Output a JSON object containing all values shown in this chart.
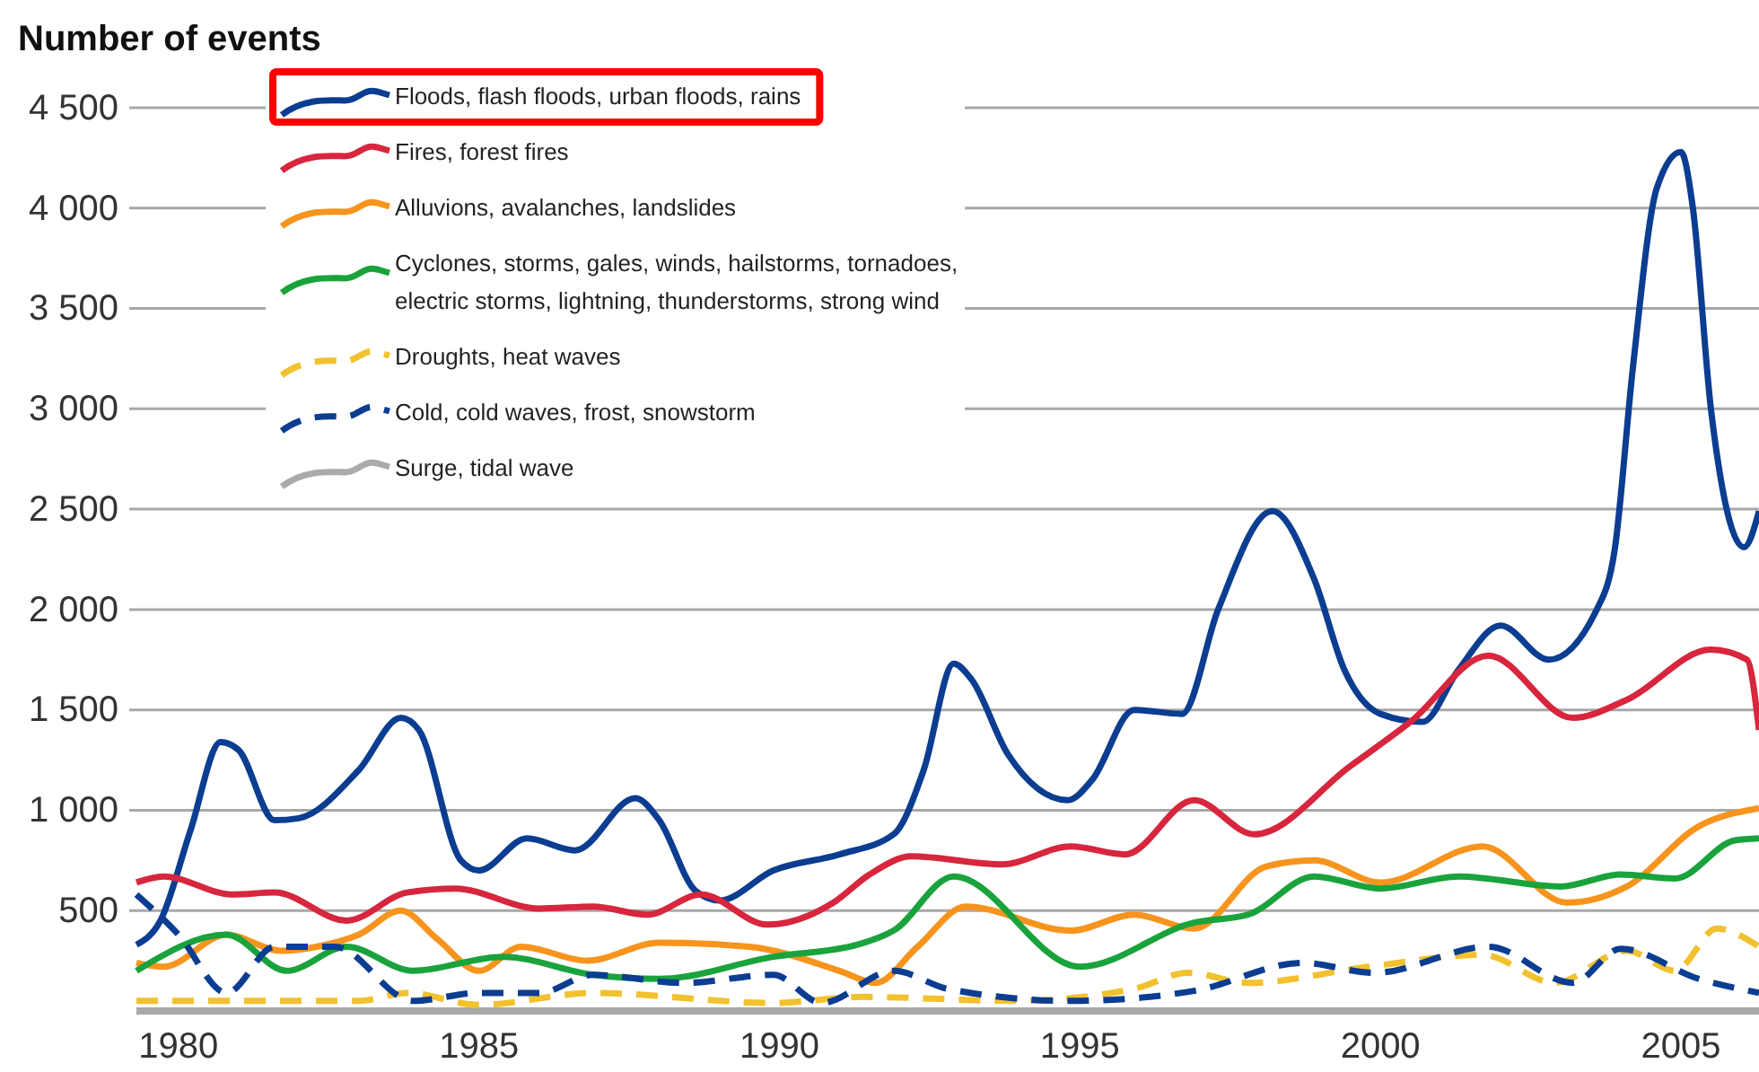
{
  "chart_data": {
    "type": "line",
    "ylabel": "Number of events",
    "xlim": [
      1979.3,
      2006.3
    ],
    "xticks": [
      1980,
      1985,
      1990,
      1995,
      2000,
      2005
    ],
    "ylim": [
      0,
      4500
    ],
    "yticks": [
      {
        "value": 500,
        "label": "500"
      },
      {
        "value": 1000,
        "label": "1 000"
      },
      {
        "value": 1500,
        "label": "1 500"
      },
      {
        "value": 2000,
        "label": "2 000"
      },
      {
        "value": 2500,
        "label": "2 500"
      },
      {
        "value": 3000,
        "label": "3 000"
      },
      {
        "value": 3500,
        "label": "3 500"
      },
      {
        "value": 4000,
        "label": "4 000"
      },
      {
        "value": 4500,
        "label": "4 500"
      }
    ],
    "grid": "y",
    "legend": "top left",
    "marker": "none",
    "series": [
      {
        "name": "Floods, flash floods, urban floods, rains",
        "color": "#0b3d91",
        "line_style": "solid",
        "x": [
          1979.3,
          1979.7,
          1980.2,
          1980.7,
          1981.0,
          1981.6,
          1982.0,
          1983.0,
          1983.7,
          1984.0,
          1984.7,
          1985.0,
          1985.8,
          1986.6,
          1987.6,
          1988.0,
          1988.6,
          1989.0,
          1989.9,
          1991.0,
          1991.9,
          1992.4,
          1992.9,
          1993.2,
          1993.8,
          1994.8,
          1995.2,
          1995.9,
          1996.7,
          1997.3,
          1998.2,
          1998.9,
          1999.4,
          2000.0,
          2000.7,
          2001.3,
          2002.0,
          2002.8,
          2003.6,
          2003.9,
          2004.2,
          2004.6,
          2005.0,
          2005.2,
          2005.5,
          2006.05,
          2006.3
        ],
        "values": [
          330,
          450,
          900,
          1340,
          1300,
          950,
          960,
          1200,
          1460,
          1400,
          750,
          700,
          860,
          800,
          1060,
          950,
          600,
          550,
          700,
          780,
          880,
          1200,
          1730,
          1650,
          1280,
          1050,
          1150,
          1500,
          1480,
          2000,
          2490,
          2150,
          1700,
          1480,
          1440,
          1700,
          1920,
          1750,
          2000,
          2300,
          3200,
          4100,
          4280,
          4000,
          3000,
          2310,
          2490
        ]
      },
      {
        "name": "Fires, forest fires",
        "color": "#d7263d",
        "line_style": "solid",
        "x": [
          1979.3,
          1979.75,
          1980.9,
          1981.6,
          1982.8,
          1983.8,
          1984.6,
          1986.0,
          1986.9,
          1987.8,
          1988.7,
          1989.8,
          1990.9,
          1991.5,
          1992.2,
          1993.7,
          1994.85,
          1995.75,
          1996.9,
          1997.9,
          1999.5,
          2000.5,
          2001.8,
          2003.2,
          2004.1,
          2005.5,
          2006.1,
          2006.3
        ],
        "values": [
          640,
          670,
          580,
          590,
          450,
          590,
          610,
          510,
          520,
          480,
          580,
          430,
          540,
          680,
          770,
          730,
          820,
          780,
          1050,
          880,
          1220,
          1440,
          1770,
          1460,
          1550,
          1800,
          1750,
          1400
        ]
      },
      {
        "name": "Alluvions, avalanches, landslides",
        "color": "#f7941d",
        "line_style": "solid",
        "x": [
          1979.3,
          1979.75,
          1980.8,
          1981.7,
          1982.3,
          1983.0,
          1983.7,
          1984.3,
          1985.0,
          1985.7,
          1986.8,
          1988.0,
          1989.5,
          1991.0,
          1991.6,
          1992.3,
          1993.1,
          1994.85,
          1995.9,
          1996.9,
          1998.1,
          1998.9,
          2000.0,
          2001.7,
          2003.1,
          2004.1,
          2005.3,
          2006.3
        ],
        "values": [
          240,
          220,
          380,
          300,
          320,
          380,
          500,
          360,
          200,
          320,
          250,
          340,
          320,
          200,
          140,
          320,
          520,
          400,
          480,
          410,
          720,
          750,
          640,
          820,
          540,
          620,
          920,
          1010
        ]
      },
      {
        "name": "Cyclones, storms, gales, winds, hailstorms, tornadoes, electric storms, lightning, thunderstorms, strong wind",
        "color": "#1aa33c",
        "line_style": "solid",
        "x": [
          1979.3,
          1980.8,
          1981.8,
          1982.8,
          1983.9,
          1985.4,
          1986.9,
          1988.0,
          1989.9,
          1991.3,
          1991.9,
          1992.9,
          1995.0,
          1996.9,
          1997.8,
          1998.9,
          2000.0,
          2001.3,
          2003.0,
          2004.0,
          2004.9,
          2005.9,
          2006.3
        ],
        "values": [
          200,
          380,
          200,
          320,
          200,
          270,
          180,
          160,
          270,
          330,
          400,
          670,
          220,
          440,
          480,
          670,
          610,
          670,
          620,
          680,
          660,
          850,
          860
        ]
      },
      {
        "name": "Droughts, heat waves",
        "color": "#f2c12e",
        "line_style": "dashed",
        "x": [
          1979.3,
          1981.0,
          1983.0,
          1983.8,
          1985.0,
          1986.9,
          1989.9,
          1991.4,
          1993.9,
          1995.9,
          1996.8,
          1997.8,
          1999.8,
          2001.7,
          2002.9,
          2004.1,
          2004.9,
          2005.6,
          2006.3
        ],
        "values": [
          50,
          50,
          50,
          90,
          30,
          90,
          40,
          70,
          50,
          110,
          190,
          140,
          220,
          280,
          140,
          300,
          200,
          410,
          320
        ]
      },
      {
        "name": "Cold, cold waves, frost, snowstorm",
        "color": "#0b3d91",
        "line_style": "dashed",
        "x": [
          1979.3,
          1980.0,
          1980.8,
          1981.6,
          1982.6,
          1983.9,
          1985.0,
          1986.0,
          1986.9,
          1988.4,
          1989.9,
          1990.7,
          1991.9,
          1992.8,
          1994.85,
          1996.9,
          1998.7,
          1999.9,
          2001.8,
          2003.2,
          2004.0,
          2005.3,
          2006.3
        ],
        "values": [
          580,
          380,
          90,
          320,
          320,
          50,
          90,
          90,
          180,
          140,
          180,
          40,
          200,
          110,
          50,
          100,
          240,
          190,
          320,
          140,
          310,
          160,
          90
        ]
      },
      {
        "name": "Surge, tidal wave",
        "color": "#aaaaaa",
        "line_style": "solid"
      }
    ]
  }
}
